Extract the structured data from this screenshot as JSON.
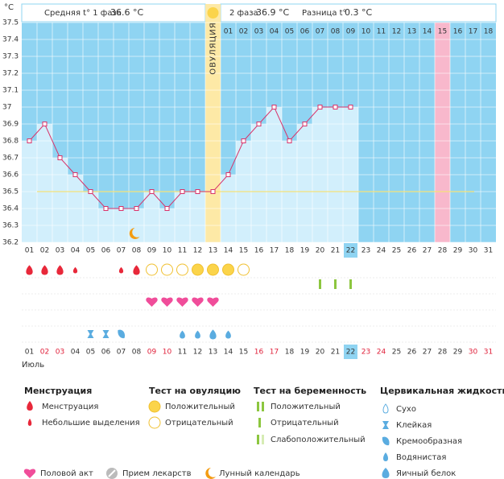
{
  "header": {
    "phase1_label": "Средняя t° 1 фаза",
    "phase1_value": "36.6 °C",
    "phase2_label": "2 фаза",
    "phase2_value": "36.9 °C",
    "diff_label": "Разница t°",
    "diff_value": "0.3 °C"
  },
  "chart_data": {
    "type": "line",
    "y_unit": "°C",
    "ovulation_label": "ОВУЛЯЦИЯ",
    "month": "Июль",
    "categories": [
      "01",
      "02",
      "03",
      "04",
      "05",
      "06",
      "07",
      "08",
      "09",
      "10",
      "11",
      "12",
      "13",
      "14",
      "15",
      "16",
      "17",
      "18",
      "19",
      "20",
      "21",
      "22",
      "23",
      "24",
      "25",
      "26",
      "27",
      "28",
      "29",
      "30",
      "31"
    ],
    "cycle_days": [
      "01",
      "02",
      "03",
      "04",
      "05",
      "06",
      "07",
      "08",
      "09",
      "10",
      "11",
      "12",
      "13",
      "14",
      "15",
      "16",
      "17",
      "18"
    ],
    "cycle_start_index": 13,
    "ovulation_index": 12,
    "expected_period_index": 27,
    "today_index": 21,
    "weekends": [
      1,
      2,
      8,
      9,
      15,
      16,
      22,
      23,
      29,
      30
    ],
    "ylim": [
      36.2,
      37.5
    ],
    "yticks": [
      36.2,
      36.3,
      36.4,
      36.5,
      36.6,
      36.7,
      36.8,
      36.9,
      37,
      37.1,
      37.2,
      37.3,
      37.4,
      37.5
    ],
    "grid": true,
    "coverline": 36.5,
    "color": "#d8336a",
    "values": [
      36.8,
      36.9,
      36.7,
      36.6,
      36.5,
      36.4,
      36.4,
      36.4,
      36.5,
      36.4,
      36.5,
      36.5,
      36.5,
      36.6,
      36.8,
      36.9,
      37,
      36.8,
      36.9,
      37,
      37,
      37,
      null,
      null,
      null,
      null,
      null,
      null,
      null,
      null,
      null
    ],
    "symbols": {
      "menstruation": [
        "heavy",
        "heavy",
        "heavy",
        "light",
        null,
        null,
        "light",
        "heavy",
        null,
        null,
        null,
        null,
        null,
        null,
        null,
        null,
        null,
        null,
        null,
        null,
        null,
        null,
        null,
        null,
        null,
        null,
        null,
        null,
        null,
        null,
        null
      ],
      "ovulation_test": [
        null,
        null,
        null,
        null,
        null,
        null,
        null,
        null,
        "negative",
        "negative",
        "negative",
        "positive",
        "positive",
        "positive",
        "negative",
        null,
        null,
        null,
        null,
        null,
        null,
        null,
        null,
        null,
        null,
        null,
        null,
        null,
        null,
        null,
        null
      ],
      "pregnancy_test": [
        null,
        null,
        null,
        null,
        null,
        null,
        null,
        null,
        null,
        null,
        null,
        null,
        null,
        null,
        null,
        null,
        null,
        null,
        null,
        "negative",
        "negative",
        "negative",
        null,
        null,
        null,
        null,
        null,
        null,
        null,
        null,
        null
      ],
      "intercourse": [
        null,
        null,
        null,
        null,
        null,
        null,
        null,
        null,
        "yes",
        "yes",
        "yes",
        "yes",
        "yes",
        null,
        null,
        null,
        null,
        null,
        null,
        null,
        null,
        null,
        null,
        null,
        null,
        null,
        null,
        null,
        null,
        null,
        null
      ],
      "cervical": [
        null,
        null,
        null,
        null,
        "sticky",
        "sticky",
        "creamy",
        null,
        null,
        null,
        "watery",
        "watery",
        "eggwhite",
        "watery",
        null,
        null,
        null,
        null,
        null,
        null,
        null,
        null,
        null,
        null,
        null,
        null,
        null,
        null,
        null,
        null,
        null
      ],
      "moon": [
        null,
        null,
        null,
        null,
        null,
        null,
        null,
        "yes",
        null,
        null,
        null,
        null,
        null,
        null,
        null,
        null,
        null,
        null,
        null,
        null,
        null,
        null,
        null,
        null,
        null,
        null,
        null,
        null,
        null,
        null,
        null
      ]
    }
  },
  "legend": {
    "menstruation": {
      "title": "Менструация",
      "items": [
        "Менструация",
        "Небольшие выделения"
      ]
    },
    "ovulation_test": {
      "title": "Тест на овуляцию",
      "items": [
        "Положительный",
        "Отрицательный"
      ]
    },
    "pregnancy_test": {
      "title": "Тест на беременность",
      "items": [
        "Положительный",
        "Отрицательный",
        "Слабоположительный"
      ]
    },
    "cervical": {
      "title": "Цервикальная жидкость",
      "items": [
        "Сухо",
        "Клейкая",
        "Кремообразная",
        "Водянистая",
        "Яичный белок"
      ]
    },
    "other": [
      "Половой акт",
      "Прием лекарств",
      "Лунный календарь"
    ]
  }
}
